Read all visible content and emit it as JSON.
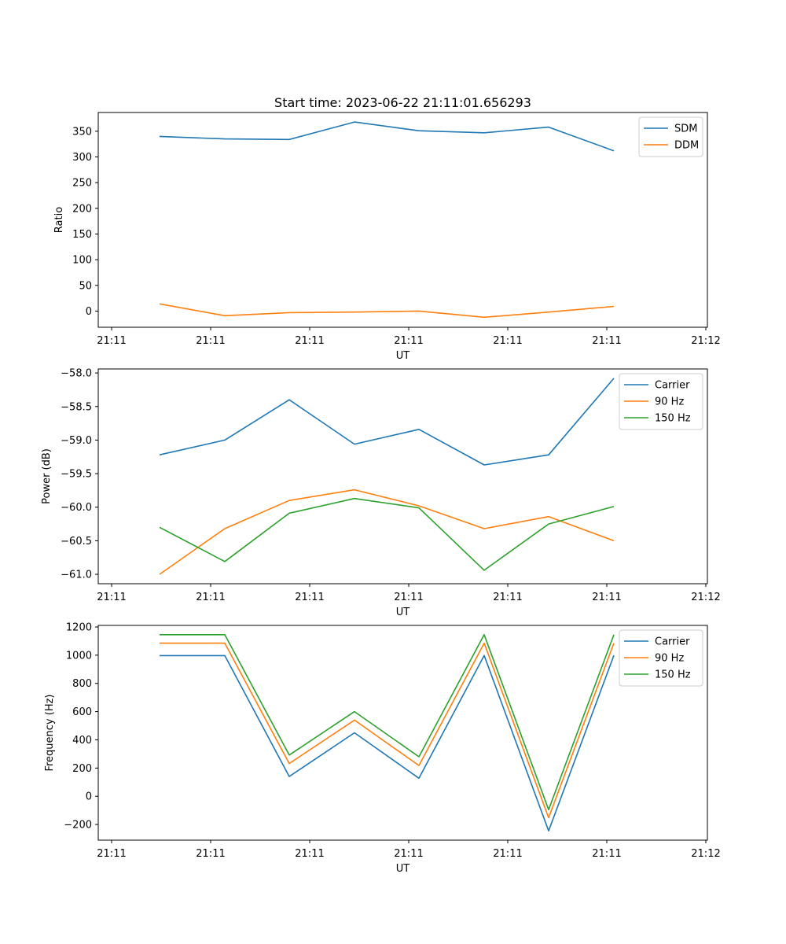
{
  "figure_title": "Start time: 2023-06-22 21:11:01.656293",
  "chart_data": [
    {
      "type": "line",
      "title": "Start time: 2023-06-22 21:11:01.656293",
      "xlabel": "UT",
      "ylabel": "Ratio",
      "x_tick_labels": [
        "21:11",
        "21:11",
        "21:11",
        "21:11",
        "21:11",
        "21:11",
        "21:12"
      ],
      "y_ticks": [
        0,
        50,
        100,
        150,
        200,
        250,
        300,
        350
      ],
      "ylim": [
        -31.5,
        386.5
      ],
      "grid": false,
      "legend_position": "top-right",
      "series": [
        {
          "name": "SDM",
          "color": "#1f77b4",
          "values": [
            340,
            335,
            334,
            368,
            351,
            347,
            358,
            312
          ]
        },
        {
          "name": "DDM",
          "color": "#ff7f0e",
          "values": [
            14,
            -9,
            -3,
            -2,
            0,
            -12,
            -2,
            9
          ]
        }
      ]
    },
    {
      "type": "line",
      "title": "",
      "xlabel": "UT",
      "ylabel": "Power (dB)",
      "x_tick_labels": [
        "21:11",
        "21:11",
        "21:11",
        "21:11",
        "21:11",
        "21:11",
        "21:12"
      ],
      "y_ticks": [
        -58.0,
        -58.5,
        -59.0,
        -59.5,
        -60.0,
        -60.5,
        -61.0
      ],
      "y_tick_labels": [
        "−58.0",
        "−58.5",
        "−59.0",
        "−59.5",
        "−60.0",
        "−60.5",
        "−61.0"
      ],
      "ylim": [
        -61.14,
        -57.94
      ],
      "grid": false,
      "legend_position": "top-right",
      "series": [
        {
          "name": "Carrier",
          "color": "#1f77b4",
          "values": [
            -59.22,
            -59.0,
            -58.4,
            -59.06,
            -58.84,
            -59.37,
            -59.22,
            -58.08
          ]
        },
        {
          "name": "90 Hz",
          "color": "#ff7f0e",
          "values": [
            -61.0,
            -60.32,
            -59.9,
            -59.74,
            -59.98,
            -60.32,
            -60.14,
            -60.5
          ]
        },
        {
          "name": "150 Hz",
          "color": "#2ca02c",
          "values": [
            -60.3,
            -60.81,
            -60.09,
            -59.87,
            -60.01,
            -60.94,
            -60.25,
            -59.99
          ]
        }
      ]
    },
    {
      "type": "line",
      "title": "",
      "xlabel": "UT",
      "ylabel": "Frequency (Hz)",
      "x_tick_labels": [
        "21:11",
        "21:11",
        "21:11",
        "21:11",
        "21:11",
        "21:11",
        "21:12"
      ],
      "y_ticks": [
        -200,
        0,
        200,
        400,
        600,
        800,
        1000,
        1200
      ],
      "y_tick_labels": [
        "−200",
        "0",
        "200",
        "400",
        "600",
        "800",
        "1000",
        "1200"
      ],
      "ylim": [
        -311,
        1211
      ],
      "grid": false,
      "legend_position": "top-right",
      "series": [
        {
          "name": "Carrier",
          "color": "#1f77b4",
          "values": [
            997,
            997,
            140,
            450,
            128,
            998,
            -245,
            998
          ]
        },
        {
          "name": "90 Hz",
          "color": "#ff7f0e",
          "values": [
            1085,
            1085,
            232,
            540,
            218,
            1085,
            -152,
            1085
          ]
        },
        {
          "name": "150 Hz",
          "color": "#2ca02c",
          "values": [
            1145,
            1145,
            292,
            600,
            280,
            1145,
            -95,
            1145
          ]
        }
      ]
    }
  ]
}
